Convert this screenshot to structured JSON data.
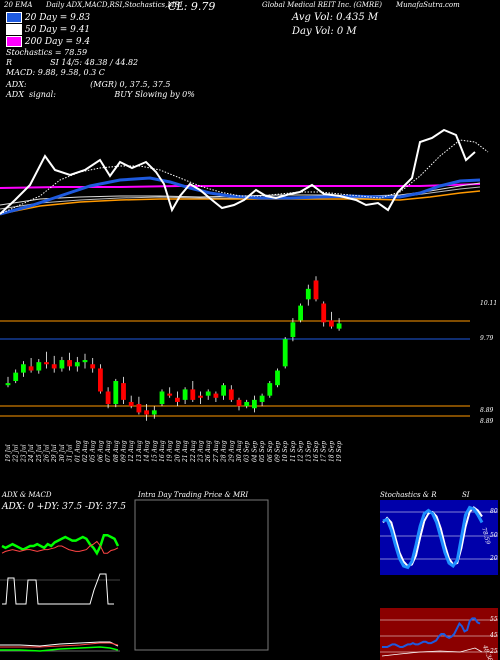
{
  "header": {
    "line1_left": "20 EMA",
    "line1_mid": "Daily ADX,MACD,RSI,Stochastics,MRI",
    "line1_cl": "CL: 9.79",
    "line1_right": "Global Medical REIT Inc. (GMRE)",
    "line1_url": "MunafaSutra.com",
    "ma20": "20 Day = 9.83",
    "ma50": "50 Day = 9.41",
    "ma200": "200 Day = 9.4",
    "stoch": "Stochastics = 78.59",
    "rsi": "R               SI 14/5: 48.38 / 44.82",
    "macd": "MACD: 9.88, 9.58, 0.3 C",
    "adx": "ADX:                         (MGR) 0, 37.5, 37.5",
    "adx_signal": "ADX  signal:                       BUY Slowing by 0%",
    "avg_vol": "Avg Vol: 0.435 M",
    "day_vol": "Day Vol: 0   M"
  },
  "colors": {
    "up": "#00ff00",
    "down": "#ff0000",
    "ema20": "#1e5adf",
    "ma200": "#ff00ff",
    "ma_orange": "#ff9900",
    "ma_white": "#ffffff",
    "stoch_bg": "#0000aa",
    "rsi_bg": "#8b0000",
    "mri_border": "#777777"
  },
  "price_labels": {
    "high": "10.11",
    "close": "9.79",
    "low1": "8.89",
    "low2": "8.89"
  },
  "panels": {
    "adx_title": "ADX  & MACD",
    "adx_values": "ADX: 0  +DY: 37.5  -DY: 37.5",
    "mri_title": "Intra Day Trading Price  & MRI",
    "stoch_title": "Stochastics & R",
    "stoch_title2": "SI",
    "stoch_ticks": [
      "80",
      "50",
      "20"
    ],
    "stoch_value": "78.59",
    "rsi_ticks": [
      "55",
      "45",
      "25"
    ],
    "rsi_value": "48.38"
  },
  "chart_data": {
    "type": "candlestick",
    "title": "Global Medical REIT Inc. (GMRE)",
    "dates": [
      "19 Jul",
      "22 Jul",
      "23 Jul",
      "24 Jul",
      "25 Jul",
      "26 Jul",
      "29 Jul",
      "30 Jul",
      "31 Jul",
      "01 Aug",
      "02 Aug",
      "05 Aug",
      "06 Aug",
      "07 Aug",
      "08 Aug",
      "09 Aug",
      "12 Aug",
      "13 Aug",
      "14 Aug",
      "15 Aug",
      "16 Aug",
      "19 Aug",
      "20 Aug",
      "21 Aug",
      "22 Aug",
      "23 Aug",
      "26 Aug",
      "27 Aug",
      "28 Aug",
      "29 Aug",
      "30 Aug",
      "03 Sep",
      "04 Sep",
      "05 Sep",
      "06 Sep",
      "09 Sep",
      "10 Sep",
      "11 Sep",
      "12 Sep",
      "13 Sep",
      "16 Sep",
      "17 Sep",
      "18 Sep",
      "19 Sep"
    ],
    "ohlc": [
      [
        9.2,
        9.28,
        9.18,
        9.22
      ],
      [
        9.24,
        9.35,
        9.22,
        9.32
      ],
      [
        9.32,
        9.43,
        9.28,
        9.4
      ],
      [
        9.38,
        9.46,
        9.32,
        9.34
      ],
      [
        9.34,
        9.45,
        9.31,
        9.42
      ],
      [
        9.42,
        9.52,
        9.36,
        9.4
      ],
      [
        9.4,
        9.48,
        9.32,
        9.36
      ],
      [
        9.36,
        9.47,
        9.33,
        9.44
      ],
      [
        9.44,
        9.51,
        9.34,
        9.38
      ],
      [
        9.38,
        9.47,
        9.33,
        9.42
      ],
      [
        9.42,
        9.5,
        9.36,
        9.44
      ],
      [
        9.4,
        9.46,
        9.32,
        9.36
      ],
      [
        9.36,
        9.4,
        9.12,
        9.14
      ],
      [
        9.14,
        9.18,
        8.98,
        9.02
      ],
      [
        9.02,
        9.26,
        8.99,
        9.24
      ],
      [
        9.22,
        9.28,
        9.02,
        9.06
      ],
      [
        9.04,
        9.1,
        8.98,
        9.0
      ],
      [
        9.02,
        9.09,
        8.92,
        8.94
      ],
      [
        8.96,
        9.02,
        8.86,
        8.92
      ],
      [
        8.92,
        9.0,
        8.88,
        8.96
      ],
      [
        9.02,
        9.16,
        9.0,
        9.14
      ],
      [
        9.12,
        9.18,
        9.08,
        9.1
      ],
      [
        9.08,
        9.14,
        9.0,
        9.04
      ],
      [
        9.06,
        9.18,
        9.02,
        9.16
      ],
      [
        9.16,
        9.24,
        9.04,
        9.06
      ],
      [
        9.1,
        9.14,
        9.02,
        9.08
      ],
      [
        9.1,
        9.16,
        9.06,
        9.14
      ],
      [
        9.12,
        9.14,
        9.04,
        9.08
      ],
      [
        9.1,
        9.22,
        9.06,
        9.2
      ],
      [
        9.16,
        9.2,
        9.04,
        9.06
      ],
      [
        9.06,
        9.08,
        8.96,
        9.0
      ],
      [
        9.0,
        9.06,
        8.98,
        9.04
      ],
      [
        8.98,
        9.1,
        8.94,
        9.06
      ],
      [
        9.04,
        9.12,
        9.0,
        9.1
      ],
      [
        9.1,
        9.24,
        9.08,
        9.22
      ],
      [
        9.2,
        9.36,
        9.18,
        9.34
      ],
      [
        9.38,
        9.66,
        9.36,
        9.64
      ],
      [
        9.66,
        9.84,
        9.62,
        9.8
      ],
      [
        9.82,
        9.98,
        9.8,
        9.96
      ],
      [
        10.02,
        10.16,
        9.96,
        10.12
      ],
      [
        10.2,
        10.24,
        10.0,
        10.02
      ],
      [
        9.98,
        10.0,
        9.76,
        9.8
      ],
      [
        9.82,
        9.9,
        9.74,
        9.76
      ],
      [
        9.74,
        9.84,
        9.72,
        9.79
      ]
    ],
    "ylim": [
      8.82,
      10.3
    ],
    "legend": [
      "20 EMA",
      "50 Day",
      "200 Day"
    ]
  },
  "macd_histogram": {
    "adx_plus": [
      0.6,
      0.58,
      0.6,
      0.62,
      0.6,
      0.58,
      0.56,
      0.58,
      0.6,
      0.6,
      0.62,
      0.6,
      0.58,
      0.62,
      0.6,
      0.64,
      0.66,
      0.68,
      0.7,
      0.68,
      0.66,
      0.66,
      0.68,
      0.7,
      0.68,
      0.62,
      0.58,
      0.52,
      0.6,
      0.72,
      0.72,
      0.7,
      0.68,
      0.6
    ],
    "adx_minus": [
      0.52,
      0.54,
      0.55,
      0.56,
      0.55,
      0.54,
      0.55,
      0.56,
      0.56,
      0.55,
      0.54,
      0.55,
      0.56,
      0.56,
      0.57,
      0.58,
      0.6,
      0.6,
      0.58,
      0.56,
      0.55,
      0.54,
      0.54,
      0.55,
      0.56,
      0.6,
      0.62,
      0.65,
      0.6,
      0.52,
      0.52,
      0.55,
      0.56,
      0.58
    ]
  },
  "stoch_series": {
    "k": [
      72,
      74,
      60,
      40,
      22,
      12,
      10,
      18,
      40,
      65,
      82,
      86,
      82,
      70,
      50,
      30,
      16,
      12,
      20,
      50,
      80,
      90,
      88,
      80,
      70
    ],
    "d": [
      70,
      76,
      70,
      50,
      30,
      18,
      12,
      14,
      26,
      50,
      72,
      82,
      84,
      78,
      62,
      40,
      22,
      14,
      16,
      36,
      64,
      84,
      90,
      86,
      78
    ]
  },
  "rsi_series": [
    30,
    30,
    30,
    31,
    32,
    32,
    31,
    30,
    30,
    31,
    32,
    32,
    33,
    32,
    32,
    33,
    34,
    34,
    33,
    33,
    34,
    35,
    38,
    40,
    40,
    38,
    37,
    38,
    40,
    44,
    48,
    46,
    42,
    43,
    50,
    52,
    52,
    49,
    48
  ]
}
